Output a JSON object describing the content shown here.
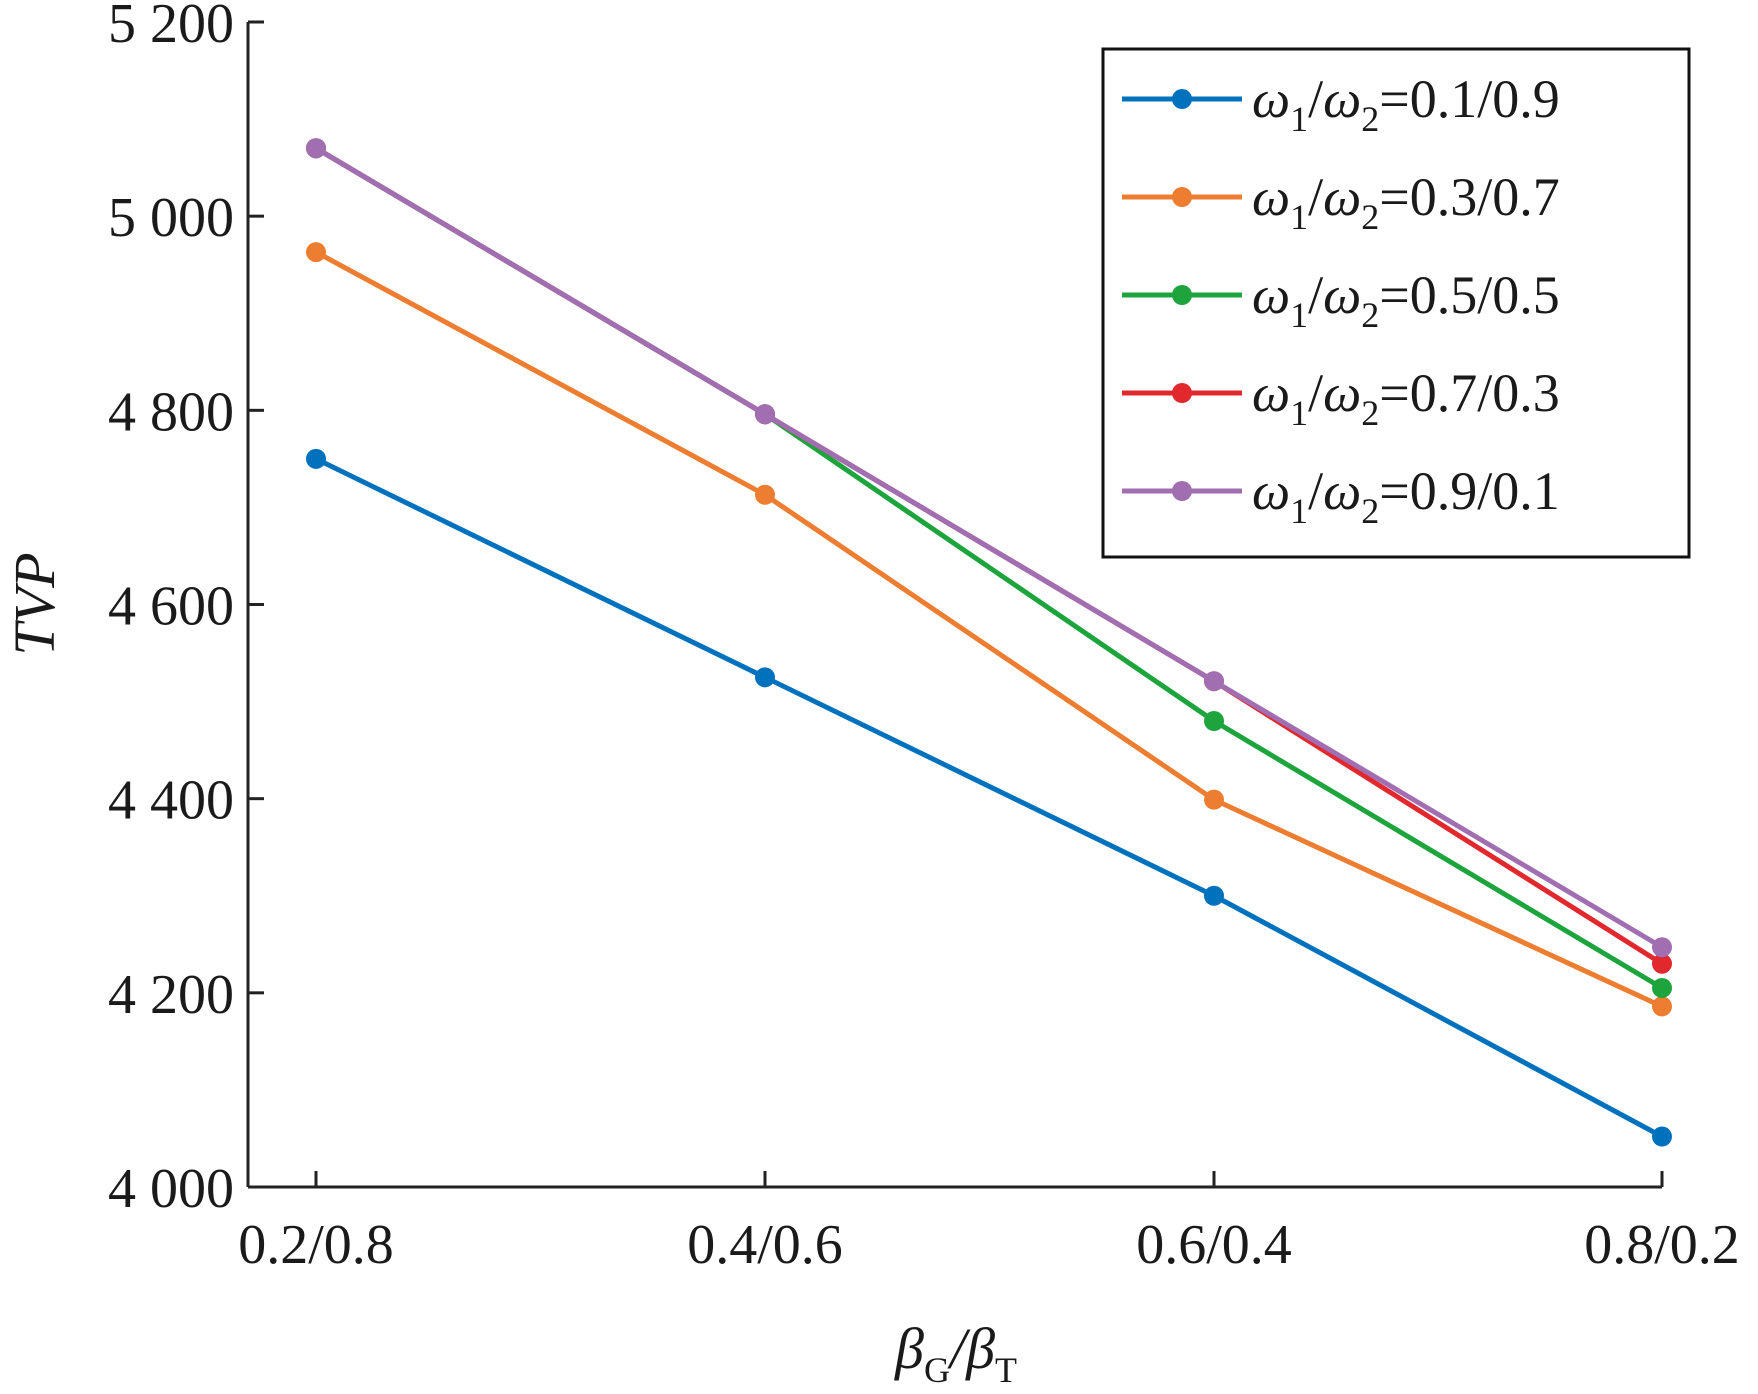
{
  "chart_data": {
    "type": "line",
    "title": "",
    "xlabel": {
      "base": "β",
      "sub_left": "G",
      "sep": "/",
      "base2": "β",
      "sub_right": "T"
    },
    "ylabel": "TVP",
    "categories": [
      "0.2/0.8",
      "0.4/0.6",
      "0.6/0.4",
      "0.8/0.2"
    ],
    "ylim": [
      4000,
      5200
    ],
    "yticks": [
      4000,
      4200,
      4400,
      4600,
      4800,
      5000,
      5200
    ],
    "ytick_labels": [
      "4 000",
      "4 200",
      "4 400",
      "4 600",
      "4 800",
      "5 000",
      "5 200"
    ],
    "grid": false,
    "legend_position": "top-right",
    "series": [
      {
        "name": "0.1/0.9",
        "color": "#0072BD",
        "values": [
          4750,
          4525,
          4300,
          4052
        ]
      },
      {
        "name": "0.3/0.7",
        "color": "#ED7D31",
        "values": [
          4963,
          4713,
          4399,
          4186
        ]
      },
      {
        "name": "0.5/0.5",
        "color": "#1DA43C",
        "values": [
          5070,
          4796,
          4480,
          4205
        ]
      },
      {
        "name": "0.7/0.3",
        "color": "#E0282D",
        "values": [
          5070,
          4796,
          4521,
          4230
        ]
      },
      {
        "name": "0.9/0.1",
        "color": "#A16EB2",
        "values": [
          5070,
          4796,
          4521,
          4247
        ]
      }
    ],
    "legend_prefix": {
      "w1": "ω",
      "s1": "1",
      "slash": "/",
      "w2": "ω",
      "s2": "2",
      "eq": "="
    }
  }
}
